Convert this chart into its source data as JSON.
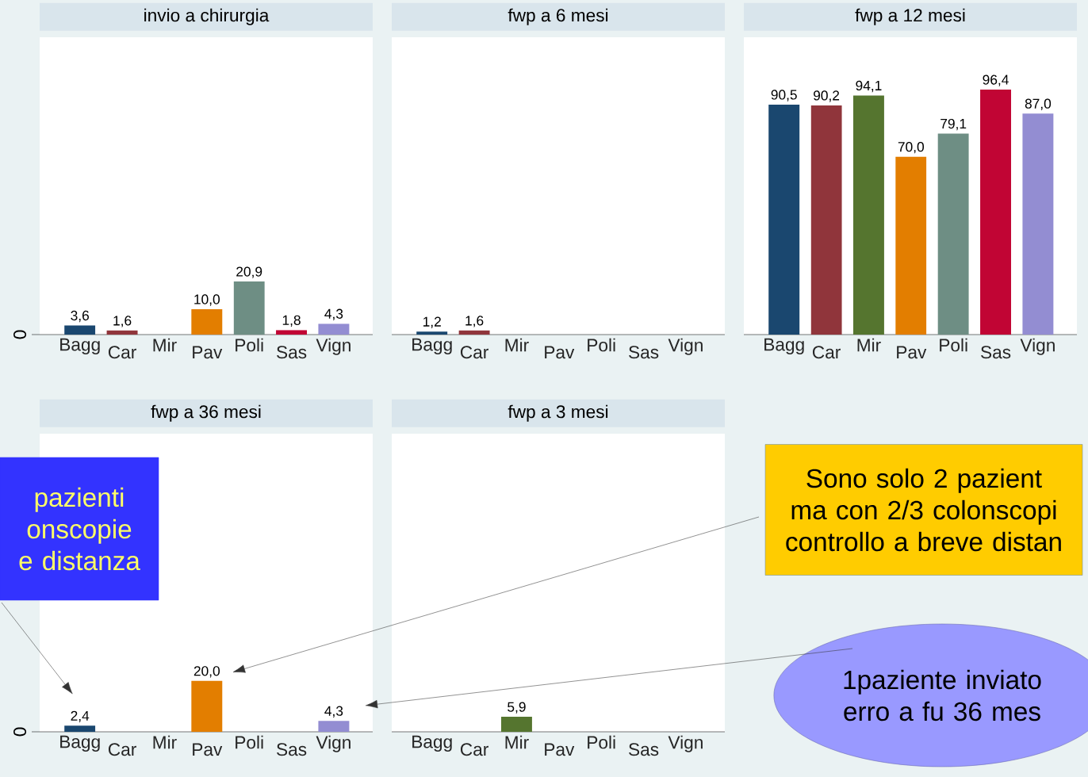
{
  "chart_data": [
    {
      "type": "bar",
      "title": "invio a chirurgia",
      "categories": [
        "Bagg",
        "Car",
        "Mir",
        "Pav",
        "Poli",
        "Sas",
        "Vign"
      ],
      "values": [
        3.6,
        1.6,
        null,
        10.0,
        20.9,
        1.8,
        4.3
      ],
      "value_labels": [
        "3,6",
        "1,6",
        null,
        "10,0",
        "20,9",
        "1,8",
        "4,3"
      ],
      "colors": [
        "#1a476f",
        "#90353b",
        "#55752f",
        "#e37e00",
        "#6e8e84",
        "#c10534",
        "#938dd2"
      ],
      "ylim": [
        0,
        117
      ],
      "annotations": [
        "0"
      ]
    },
    {
      "type": "bar",
      "title": "fwp a 6 mesi",
      "categories": [
        "Bagg",
        "Car",
        "Mir",
        "Pav",
        "Poli",
        "Sas",
        "Vign"
      ],
      "values": [
        1.2,
        1.6,
        null,
        null,
        null,
        null,
        null
      ],
      "value_labels": [
        "1,2",
        "1,6",
        null,
        null,
        null,
        null,
        null
      ],
      "colors": [
        "#1a476f",
        "#90353b",
        "#55752f",
        "#e37e00",
        "#6e8e84",
        "#c10534",
        "#938dd2"
      ],
      "ylim": [
        0,
        117
      ],
      "tick_labels": "x"
    },
    {
      "type": "bar",
      "title": "fwp a 12 mesi",
      "categories": [
        "Bagg",
        "Car",
        "Mir",
        "Pav",
        "Poli",
        "Sas",
        "Vign"
      ],
      "values": [
        90.5,
        90.2,
        94.1,
        70.0,
        79.1,
        96.4,
        87.0
      ],
      "value_labels": [
        "90,5",
        "90,2",
        "94,1",
        "70,0",
        "79,1",
        "96,4",
        "87,0"
      ],
      "colors": [
        "#1a476f",
        "#90353b",
        "#55752f",
        "#e37e00",
        "#6e8e84",
        "#c10534",
        "#938dd2"
      ],
      "ylim": [
        0,
        117
      ],
      "tick_labels": "x"
    },
    {
      "type": "bar",
      "title": "fwp a 36 mesi",
      "categories": [
        "Bagg",
        "Car",
        "Mir",
        "Pav",
        "Poli",
        "Sas",
        "Vign"
      ],
      "values": [
        2.4,
        null,
        null,
        20.0,
        null,
        null,
        4.3
      ],
      "value_labels": [
        "2,4",
        null,
        null,
        "20,0",
        null,
        null,
        "4,3"
      ],
      "colors": [
        "#1a476f",
        "#90353b",
        "#55752f",
        "#e37e00",
        "#6e8e84",
        "#c10534",
        "#938dd2"
      ],
      "ylim": [
        0,
        117
      ],
      "annotations": [
        "0",
        "pazienti onscopie e distanza",
        "Sono solo 2 pazient ma con 2/3 colonscopi controllo a breve distan",
        "1paziente inviato erro a fu 36 mes"
      ]
    },
    {
      "type": "bar",
      "title": "fwp a 3 mesi",
      "categories": [
        "Bagg",
        "Car",
        "Mir",
        "Pav",
        "Poli",
        "Sas",
        "Vign"
      ],
      "values": [
        null,
        null,
        5.9,
        null,
        null,
        null,
        null
      ],
      "value_labels": [
        null,
        null,
        "5,9",
        null,
        null,
        null,
        null
      ],
      "colors": [
        "#1a476f",
        "#90353b",
        "#55752f",
        "#e37e00",
        "#6e8e84",
        "#c10534",
        "#938dd2"
      ],
      "ylim": [
        0,
        117
      ],
      "tick_labels": "x"
    }
  ]
}
